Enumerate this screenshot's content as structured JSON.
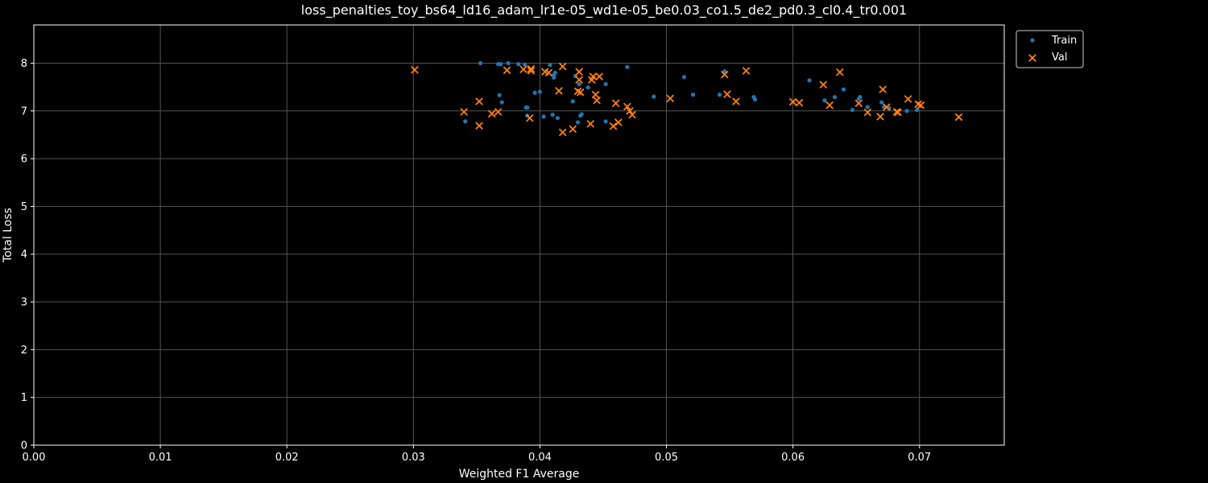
{
  "chart_data": {
    "type": "scatter",
    "title": "loss_penalties_toy_bs64_ld16_adam_lr1e-05_wd1e-05_be0.03_co1.5_de2_pd0.3_cl0.4_tr0.001",
    "xlabel": "Weighted F1 Average",
    "ylabel": "Total Loss",
    "xlim": [
      0.0,
      0.0767
    ],
    "ylim": [
      0,
      8.8
    ],
    "x_ticks": [
      "0.00",
      "0.01",
      "0.02",
      "0.03",
      "0.04",
      "0.05",
      "0.06",
      "0.07"
    ],
    "x_tick_values": [
      0.0,
      0.01,
      0.02,
      0.03,
      0.04,
      0.05,
      0.06,
      0.07
    ],
    "y_ticks": [
      "0",
      "1",
      "2",
      "3",
      "4",
      "5",
      "6",
      "7",
      "8"
    ],
    "y_tick_values": [
      0,
      1,
      2,
      3,
      4,
      5,
      6,
      7,
      8
    ],
    "grid": true,
    "legend_position": "outside-top-right",
    "series": [
      {
        "name": "Train",
        "marker": "dot",
        "color": "#1f77b4",
        "points": [
          [
            0.0353,
            8.0
          ],
          [
            0.0367,
            7.98
          ],
          [
            0.0369,
            7.98
          ],
          [
            0.0375,
            8.0
          ],
          [
            0.0383,
            7.98
          ],
          [
            0.0388,
            7.97
          ],
          [
            0.0408,
            7.96
          ],
          [
            0.0469,
            7.92
          ],
          [
            0.0546,
            7.83
          ],
          [
            0.0412,
            7.8
          ],
          [
            0.0411,
            7.75
          ],
          [
            0.0411,
            7.7
          ],
          [
            0.0428,
            7.73
          ],
          [
            0.0514,
            7.71
          ],
          [
            0.0613,
            7.64
          ],
          [
            0.0431,
            7.56
          ],
          [
            0.0452,
            7.56
          ],
          [
            0.0438,
            7.49
          ],
          [
            0.064,
            7.45
          ],
          [
            0.0396,
            7.38
          ],
          [
            0.04,
            7.4
          ],
          [
            0.0368,
            7.33
          ],
          [
            0.0521,
            7.34
          ],
          [
            0.0542,
            7.34
          ],
          [
            0.049,
            7.3
          ],
          [
            0.0569,
            7.29
          ],
          [
            0.057,
            7.24
          ],
          [
            0.0633,
            7.29
          ],
          [
            0.0653,
            7.29
          ],
          [
            0.0652,
            7.25
          ],
          [
            0.037,
            7.18
          ],
          [
            0.0426,
            7.2
          ],
          [
            0.0625,
            7.22
          ],
          [
            0.067,
            7.18
          ],
          [
            0.039,
            7.07
          ],
          [
            0.0389,
            7.07
          ],
          [
            0.0659,
            7.08
          ],
          [
            0.0672,
            7.08
          ],
          [
            0.0676,
            7.06
          ],
          [
            0.0647,
            7.02
          ],
          [
            0.069,
            7.0
          ],
          [
            0.0698,
            7.02
          ],
          [
            0.0433,
            6.93
          ],
          [
            0.0432,
            6.9
          ],
          [
            0.0403,
            6.88
          ],
          [
            0.041,
            6.92
          ],
          [
            0.0414,
            6.85
          ],
          [
            0.043,
            6.76
          ],
          [
            0.0452,
            6.78
          ],
          [
            0.0341,
            6.78
          ],
          [
            0.039,
            6.9
          ]
        ]
      },
      {
        "name": "Val",
        "marker": "x",
        "color": "#ff7f0e",
        "points": [
          [
            0.0301,
            7.86
          ],
          [
            0.0374,
            7.85
          ],
          [
            0.0387,
            7.87
          ],
          [
            0.0393,
            7.84
          ],
          [
            0.0393,
            7.88
          ],
          [
            0.0404,
            7.82
          ],
          [
            0.0407,
            7.8
          ],
          [
            0.0418,
            7.93
          ],
          [
            0.0431,
            7.82
          ],
          [
            0.0563,
            7.84
          ],
          [
            0.0637,
            7.81
          ],
          [
            0.0546,
            7.76
          ],
          [
            0.0442,
            7.72
          ],
          [
            0.0447,
            7.72
          ],
          [
            0.0431,
            7.65
          ],
          [
            0.0441,
            7.65
          ],
          [
            0.0624,
            7.55
          ],
          [
            0.0671,
            7.45
          ],
          [
            0.0415,
            7.42
          ],
          [
            0.043,
            7.41
          ],
          [
            0.0432,
            7.39
          ],
          [
            0.0444,
            7.34
          ],
          [
            0.0548,
            7.35
          ],
          [
            0.0503,
            7.26
          ],
          [
            0.0445,
            7.22
          ],
          [
            0.0555,
            7.2
          ],
          [
            0.0691,
            7.25
          ],
          [
            0.0352,
            7.2
          ],
          [
            0.046,
            7.16
          ],
          [
            0.06,
            7.19
          ],
          [
            0.0605,
            7.17
          ],
          [
            0.0652,
            7.16
          ],
          [
            0.0629,
            7.12
          ],
          [
            0.0469,
            7.09
          ],
          [
            0.0674,
            7.08
          ],
          [
            0.0699,
            7.14
          ],
          [
            0.0701,
            7.12
          ],
          [
            0.034,
            6.98
          ],
          [
            0.0367,
            6.98
          ],
          [
            0.0362,
            6.94
          ],
          [
            0.0471,
            7.0
          ],
          [
            0.0473,
            6.92
          ],
          [
            0.0659,
            6.97
          ],
          [
            0.0682,
            6.98
          ],
          [
            0.0683,
            6.97
          ],
          [
            0.0669,
            6.88
          ],
          [
            0.0731,
            6.87
          ],
          [
            0.0392,
            6.85
          ],
          [
            0.0462,
            6.76
          ],
          [
            0.0458,
            6.68
          ],
          [
            0.044,
            6.73
          ],
          [
            0.0426,
            6.62
          ],
          [
            0.0418,
            6.55
          ],
          [
            0.0352,
            6.69
          ]
        ]
      }
    ]
  }
}
